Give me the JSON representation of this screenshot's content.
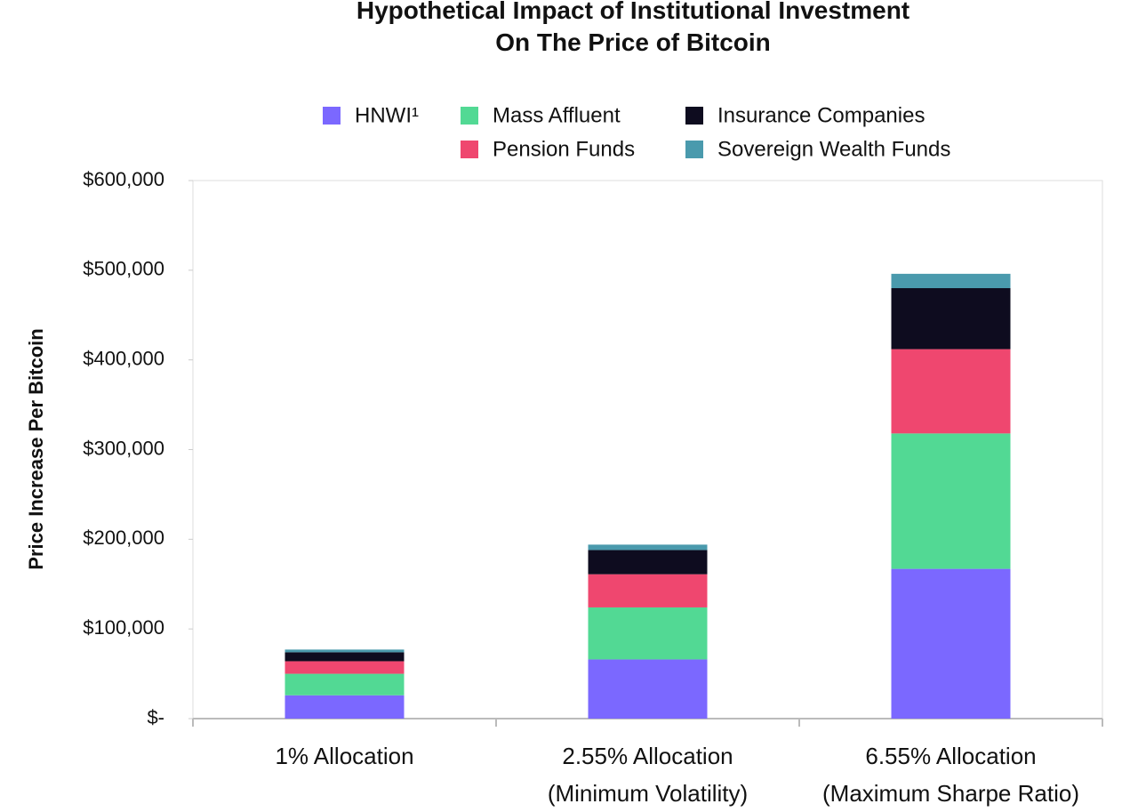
{
  "chart_data": {
    "type": "stacked-bar",
    "title": "Hypothetical Impact of Institutional Investment\nOn The Price of Bitcoin",
    "y_label": "Price Increase Per Bitcoin",
    "categories": [
      "1% Allocation",
      "2.55% Allocation\n(Minimum Volatility)",
      "6.55% Allocation\n(Maximum Sharpe Ratio)"
    ],
    "series": [
      {
        "name": "HNWI¹",
        "color": "#7b68ff",
        "values": [
          26000,
          66000,
          167000
        ]
      },
      {
        "name": "Mass Affluent",
        "color": "#52d994",
        "values": [
          24000,
          58000,
          151000
        ]
      },
      {
        "name": "Pension Funds",
        "color": "#ef476f",
        "values": [
          14000,
          37000,
          94000
        ]
      },
      {
        "name": "Insurance Companies",
        "color": "#0e0c1f",
        "values": [
          10000,
          27000,
          68000
        ]
      },
      {
        "name": "Sovereign Wealth Funds",
        "color": "#4a9aad",
        "values": [
          3000,
          6000,
          16000
        ]
      }
    ],
    "ylim": [
      0,
      600000
    ],
    "yticks": [
      {
        "value": 0,
        "label": "$-"
      },
      {
        "value": 100000,
        "label": "$100,000"
      },
      {
        "value": 200000,
        "label": "$200,000"
      },
      {
        "value": 300000,
        "label": "$300,000"
      },
      {
        "value": 400000,
        "label": "$400,000"
      },
      {
        "value": 500000,
        "label": "$500,000"
      },
      {
        "value": 600000,
        "label": "$600,000"
      }
    ],
    "grid": false
  }
}
